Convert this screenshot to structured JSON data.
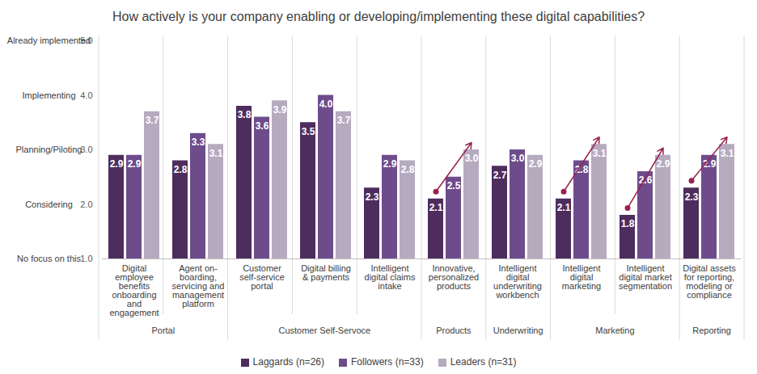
{
  "chart_data": {
    "type": "bar",
    "title": "How actively is your company enabling or developing/implementing these digital capabilities?",
    "categories": [
      "Digital employee benefits onboarding and engagement",
      "Agent on-boarding, servicing and management platform",
      "Customer self-service portal",
      "Digital billing & payments",
      "Intelligent digital claims intake",
      "Innovative, personalized products",
      "Intelligent digital underwriting workbench",
      "Intelligent digital marketing",
      "Intelligent digital market segmentation",
      "Digital assets for reporting, modeling or compliance"
    ],
    "category_groups": [
      "Portal",
      "Portal",
      "Customer Self-Servoce",
      "Customer Self-Servoce",
      "Customer Self-Servoce",
      "Products",
      "Underwriting",
      "Marketing",
      "Marketing",
      "Reporting"
    ],
    "series": [
      {
        "name": "Laggards (n=26)",
        "color": "#4e2d5e",
        "values": [
          2.9,
          2.8,
          3.8,
          3.5,
          2.3,
          2.1,
          2.7,
          2.1,
          1.8,
          2.3
        ],
        "value_labels": [
          "2.9",
          "2.8",
          "3.8",
          "3.5",
          "2.3",
          "2.1",
          "2.7",
          "2.1",
          "1.8",
          "2.3"
        ]
      },
      {
        "name": "Followers (n=33)",
        "color": "#6e4c8c",
        "values": [
          2.9,
          3.3,
          3.6,
          4.0,
          2.9,
          2.5,
          3.0,
          2.8,
          2.6,
          2.9
        ],
        "value_labels": [
          "2.9",
          "3.3",
          "3.6",
          "4.0",
          "2.9",
          "2.5",
          "3.0",
          "2.8",
          "2.6",
          "2.9"
        ]
      },
      {
        "name": "Leaders (n=31)",
        "color": "#b5abbf",
        "values": [
          3.7,
          3.1,
          3.9,
          3.7,
          2.8,
          3.0,
          2.9,
          3.1,
          2.9,
          3.1
        ],
        "value_labels": [
          "3.7",
          "3.1",
          "3.9",
          "3.7",
          "2.8",
          "3.0",
          "2.9",
          "3.1",
          "2.9",
          "3.1"
        ]
      }
    ],
    "ylim": [
      1,
      5
    ],
    "yticks": [
      1,
      2,
      3,
      4,
      5
    ],
    "y_level_labels": [
      "No focus on this",
      "Considering",
      "Planning/Piloting",
      "Implementing",
      "Already implemented"
    ],
    "grid": false,
    "data_labels": true,
    "legend": "bottom"
  }
}
